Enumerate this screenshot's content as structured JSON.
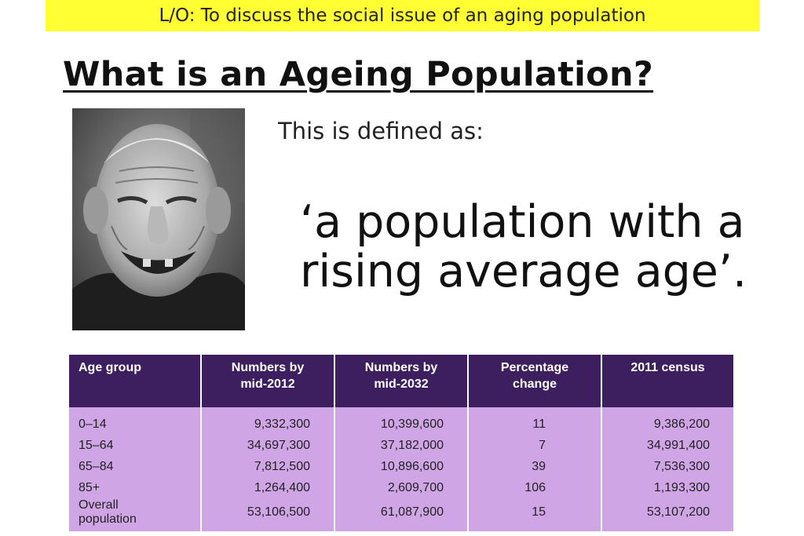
{
  "banner": {
    "text": "L/O: To discuss the social issue of an aging population"
  },
  "heading": {
    "title": "What is an Ageing Population?"
  },
  "intro": {
    "text": "This is defined as:"
  },
  "definition": {
    "line1": "‘a population with a",
    "line2": "rising average age’."
  },
  "table": {
    "headers": [
      "Age group",
      "Numbers by mid-2012",
      "Numbers by mid-2032",
      "Percentage change",
      "2011 census"
    ],
    "header_lines": [
      [
        "Age group",
        ""
      ],
      [
        "Numbers by",
        "mid-2012"
      ],
      [
        "Numbers by",
        "mid-2032"
      ],
      [
        "Percentage",
        "change"
      ],
      [
        "2011 census",
        ""
      ]
    ],
    "rows": [
      [
        "0–14",
        "9,332,300",
        "10,399,600",
        "11",
        "9,386,200"
      ],
      [
        "15–64",
        "34,697,300",
        "37,182,000",
        "7",
        "34,991,400"
      ],
      [
        "65–84",
        "7,812,500",
        "10,896,600",
        "39",
        "7,536,300"
      ],
      [
        "85+",
        "1,264,400",
        "2,609,700",
        "106",
        "1,193,300"
      ],
      [
        "Overall population",
        "53,106,500",
        "61,087,900",
        "15",
        "53,107,200"
      ]
    ],
    "colors": {
      "header_bg": "#3d1f5f",
      "body_bg": "#cfa5e6"
    }
  },
  "photo": {
    "icon": "elderly-man-photo"
  },
  "colors": {
    "banner_bg": "#ffff33"
  }
}
